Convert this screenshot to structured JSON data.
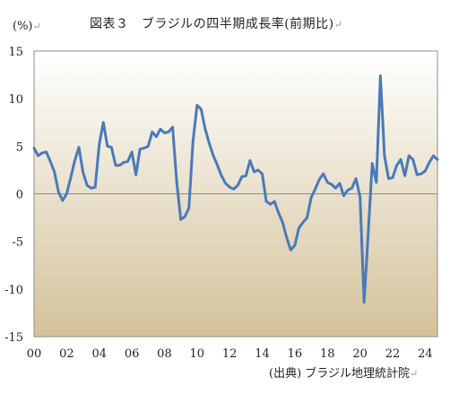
{
  "title": "図表３　ブラジルの四半期成長率(前期比)",
  "unit_label": "(%)",
  "source": "(出典) ブラジル地理統計院",
  "paragraph_mark": "↵",
  "colors": {
    "line": "#4a7ab8",
    "plot_top": "#ffffff",
    "plot_bottom": "#d4c29a",
    "frame": "#8c8c8c"
  },
  "chart_data": {
    "type": "line",
    "title": "図表３　ブラジルの四半期成長率(前期比)",
    "xlabel": "",
    "ylabel": "(%)",
    "ylim": [
      -15,
      15
    ],
    "xlim": [
      2000,
      2024.75
    ],
    "yticks": [
      15,
      10,
      5,
      0,
      -5,
      -10,
      -15
    ],
    "xticks": [
      {
        "label": "00",
        "value": 2000
      },
      {
        "label": "02",
        "value": 2002
      },
      {
        "label": "04",
        "value": 2004
      },
      {
        "label": "06",
        "value": 2006
      },
      {
        "label": "08",
        "value": 2008
      },
      {
        "label": "10",
        "value": 2010
      },
      {
        "label": "12",
        "value": 2012
      },
      {
        "label": "14",
        "value": 2014
      },
      {
        "label": "16",
        "value": 2016
      },
      {
        "label": "18",
        "value": 2018
      },
      {
        "label": "20",
        "value": 2020
      },
      {
        "label": "22",
        "value": 2022
      },
      {
        "label": "24",
        "value": 2024
      }
    ],
    "grid": false,
    "legend": "none",
    "series": [
      {
        "x": [
          2000.0,
          2000.25,
          2000.5,
          2000.75,
          2001.0,
          2001.25,
          2001.5,
          2001.75,
          2002.0,
          2002.25,
          2002.5,
          2002.75,
          2003.0,
          2003.25,
          2003.5,
          2003.75,
          2004.0,
          2004.25,
          2004.5,
          2004.75,
          2005.0,
          2005.25,
          2005.5,
          2005.75,
          2006.0,
          2006.25,
          2006.5,
          2006.75,
          2007.0,
          2007.25,
          2007.5,
          2007.75,
          2008.0,
          2008.25,
          2008.5,
          2008.75,
          2009.0,
          2009.25,
          2009.5,
          2009.75,
          2010.0,
          2010.25,
          2010.5,
          2010.75,
          2011.0,
          2011.25,
          2011.5,
          2011.75,
          2012.0,
          2012.25,
          2012.5,
          2012.75,
          2013.0,
          2013.25,
          2013.5,
          2013.75,
          2014.0,
          2014.25,
          2014.5,
          2014.75,
          2015.0,
          2015.25,
          2015.5,
          2015.75,
          2016.0,
          2016.25,
          2016.5,
          2016.75,
          2017.0,
          2017.25,
          2017.5,
          2017.75,
          2018.0,
          2018.25,
          2018.5,
          2018.75,
          2019.0,
          2019.25,
          2019.5,
          2019.75,
          2020.0,
          2020.25,
          2020.5,
          2020.75,
          2021.0,
          2021.25,
          2021.5,
          2021.75,
          2022.0,
          2022.25,
          2022.5,
          2022.75,
          2023.0,
          2023.25,
          2023.5,
          2023.75,
          2024.0,
          2024.25,
          2024.5,
          2024.75
        ],
        "values": [
          4.8,
          4.0,
          4.3,
          4.4,
          3.4,
          2.3,
          0.2,
          -0.7,
          0.0,
          1.7,
          3.5,
          4.9,
          2.3,
          0.9,
          0.6,
          0.7,
          5.2,
          7.5,
          5.0,
          4.9,
          3.0,
          3.0,
          3.3,
          3.4,
          4.4,
          2.0,
          4.7,
          4.8,
          5.0,
          6.5,
          6.0,
          6.8,
          6.4,
          6.5,
          7.0,
          1.3,
          -2.7,
          -2.4,
          -1.5,
          5.5,
          9.3,
          8.9,
          6.8,
          5.3,
          4.0,
          3.0,
          1.9,
          1.1,
          0.7,
          0.5,
          0.9,
          1.8,
          1.9,
          3.5,
          2.3,
          2.5,
          2.1,
          -0.8,
          -1.1,
          -0.8,
          -2.0,
          -3.0,
          -4.6,
          -5.9,
          -5.4,
          -3.6,
          -3.0,
          -2.5,
          -0.4,
          0.5,
          1.5,
          2.1,
          1.2,
          1.0,
          0.6,
          1.1,
          -0.2,
          0.4,
          0.6,
          1.6,
          -0.3,
          -11.4,
          -4.2,
          3.2,
          1.2,
          12.4,
          4.0,
          1.6,
          1.7,
          3.0,
          3.6,
          1.9,
          4.0,
          3.6,
          2.0,
          2.1,
          2.4,
          3.3,
          4.0,
          3.6
        ]
      }
    ]
  }
}
